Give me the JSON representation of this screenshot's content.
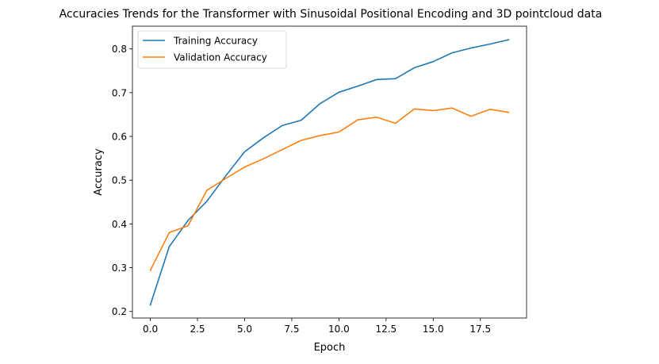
{
  "chart_data": {
    "type": "line",
    "title": "Accuracies Trends for the Transformer with Sinusoidal Positional Encoding and 3D pointcloud data",
    "xlabel": "Epoch",
    "ylabel": "Accuracy",
    "xlim": [
      -0.95,
      19.95
    ],
    "ylim": [
      0.185,
      0.852
    ],
    "x_ticks": [
      0.0,
      2.5,
      5.0,
      7.5,
      10.0,
      12.5,
      15.0,
      17.5
    ],
    "x_tick_labels": [
      "0.0",
      "2.5",
      "5.0",
      "7.5",
      "10.0",
      "12.5",
      "15.0",
      "17.5"
    ],
    "y_ticks": [
      0.2,
      0.3,
      0.4,
      0.5,
      0.6,
      0.7,
      0.8
    ],
    "y_tick_labels": [
      "0.2",
      "0.3",
      "0.4",
      "0.5",
      "0.6",
      "0.7",
      "0.8"
    ],
    "grid": false,
    "legend_position": "top-left",
    "x": [
      0,
      1,
      2,
      3,
      4,
      5,
      6,
      7,
      8,
      9,
      10,
      11,
      12,
      13,
      14,
      15,
      16,
      17,
      18,
      19
    ],
    "series": [
      {
        "name": "Training Accuracy",
        "color": "#1f77b4",
        "values": [
          0.215,
          0.348,
          0.408,
          0.452,
          0.51,
          0.565,
          0.597,
          0.625,
          0.637,
          0.675,
          0.701,
          0.715,
          0.73,
          0.732,
          0.757,
          0.771,
          0.791,
          0.802,
          0.811,
          0.821
        ]
      },
      {
        "name": "Validation Accuracy",
        "color": "#ff7f0e",
        "values": [
          0.294,
          0.38,
          0.396,
          0.477,
          0.504,
          0.53,
          0.549,
          0.57,
          0.591,
          0.602,
          0.61,
          0.638,
          0.644,
          0.63,
          0.663,
          0.659,
          0.665,
          0.646,
          0.662,
          0.655
        ]
      }
    ]
  }
}
